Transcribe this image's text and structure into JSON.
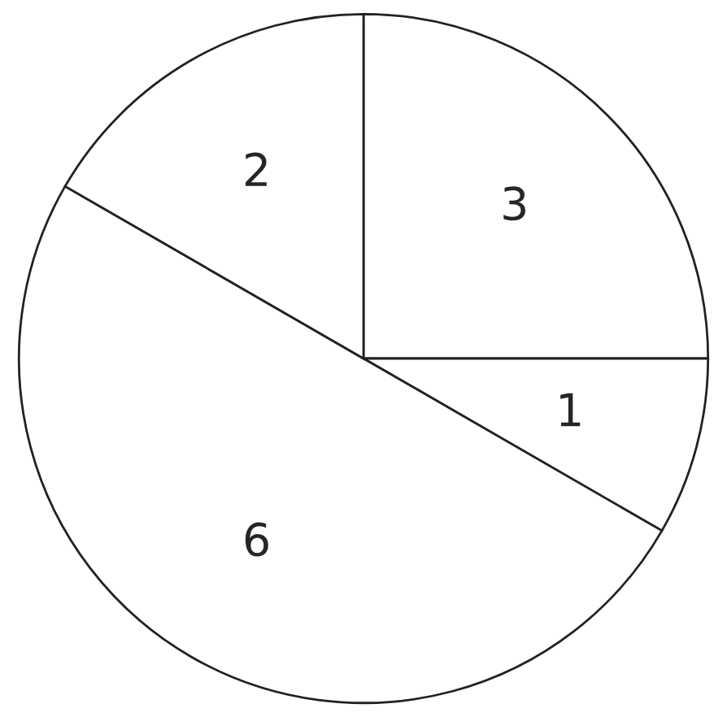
{
  "chart_data": {
    "type": "pie",
    "categories": [
      null,
      null,
      null,
      null
    ],
    "values": [
      3,
      1,
      6,
      2
    ],
    "colors": [
      "#ffffff",
      "#ffffff",
      "#ffffff",
      "#ffffff"
    ],
    "data_labels": true
  }
}
